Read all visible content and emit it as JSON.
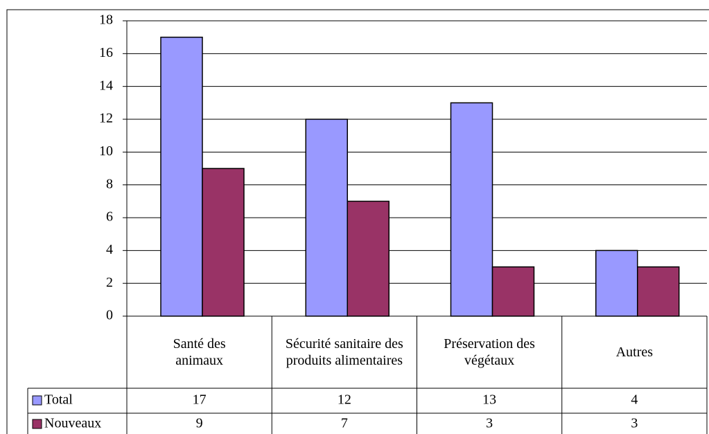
{
  "chart_data": {
    "type": "bar",
    "categories": [
      "Santé des animaux",
      "Sécurité sanitaire des produits alimentaires",
      "Préservation des végétaux",
      "Autres"
    ],
    "series": [
      {
        "name": "Total",
        "color": "#9999ff",
        "values": [
          17,
          12,
          13,
          4
        ]
      },
      {
        "name": "Nouveaux",
        "color": "#993366",
        "values": [
          9,
          7,
          3,
          3
        ]
      }
    ],
    "ylim": [
      0,
      18
    ],
    "yticks": [
      0,
      2,
      4,
      6,
      8,
      10,
      12,
      14,
      16,
      18
    ],
    "grid": true,
    "data_table": true
  }
}
